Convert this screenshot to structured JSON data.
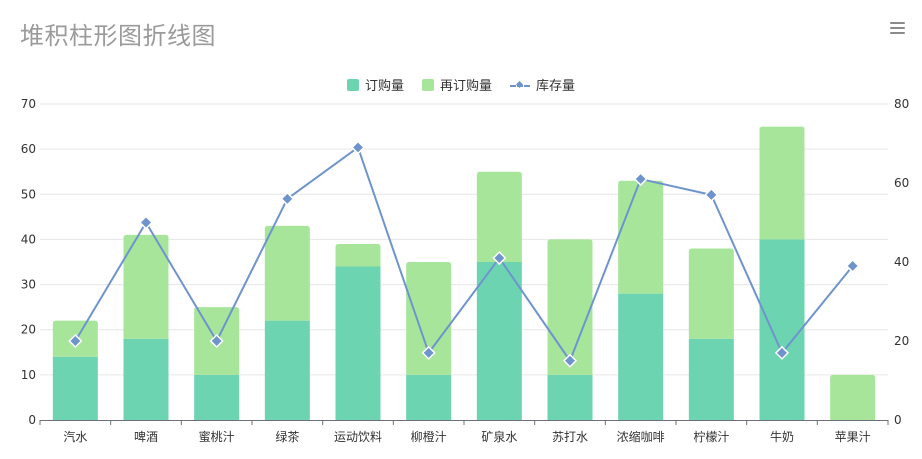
{
  "title": "堆积柱形图折线图",
  "menu_icon": "hamburger-menu-icon",
  "colors": {
    "order": "#6cd4b1",
    "reorder": "#a7e59b",
    "stock": "#6f94cd",
    "grid": "#e6e6e6",
    "title": "#9a9a9a"
  },
  "legend": {
    "placement": "top-center",
    "items": [
      {
        "key": "order",
        "label": "订购量"
      },
      {
        "key": "reorder",
        "label": "再订购量"
      },
      {
        "key": "stock",
        "label": "库存量"
      }
    ]
  },
  "chart_data": {
    "type": "bar",
    "stacked": true,
    "title": "堆积柱形图折线图",
    "categories": [
      "汽水",
      "啤酒",
      "蜜桃汁",
      "绿茶",
      "运动饮料",
      "柳橙汁",
      "矿泉水",
      "苏打水",
      "浓缩咖啡",
      "柠檬汁",
      "牛奶",
      "苹果汁"
    ],
    "series": [
      {
        "name": "订购量",
        "type": "bar",
        "stack": "total",
        "axis": "left",
        "values": [
          14,
          18,
          10,
          22,
          34,
          10,
          35,
          10,
          28,
          18,
          40,
          0
        ]
      },
      {
        "name": "再订购量",
        "type": "bar",
        "stack": "total",
        "axis": "left",
        "values": [
          8,
          23,
          15,
          21,
          5,
          25,
          20,
          30,
          25,
          20,
          25,
          10
        ]
      },
      {
        "name": "库存量",
        "type": "line",
        "axis": "right",
        "values": [
          20,
          50,
          20,
          56,
          69,
          17,
          41,
          15,
          61,
          57,
          17,
          39
        ]
      }
    ],
    "left_axis": {
      "min": 0,
      "max": 70,
      "ticks": [
        0,
        10,
        20,
        30,
        40,
        50,
        60,
        70
      ]
    },
    "right_axis": {
      "min": 0,
      "max": 80,
      "ticks": [
        0,
        20,
        40,
        60,
        80
      ]
    },
    "grid": true
  }
}
